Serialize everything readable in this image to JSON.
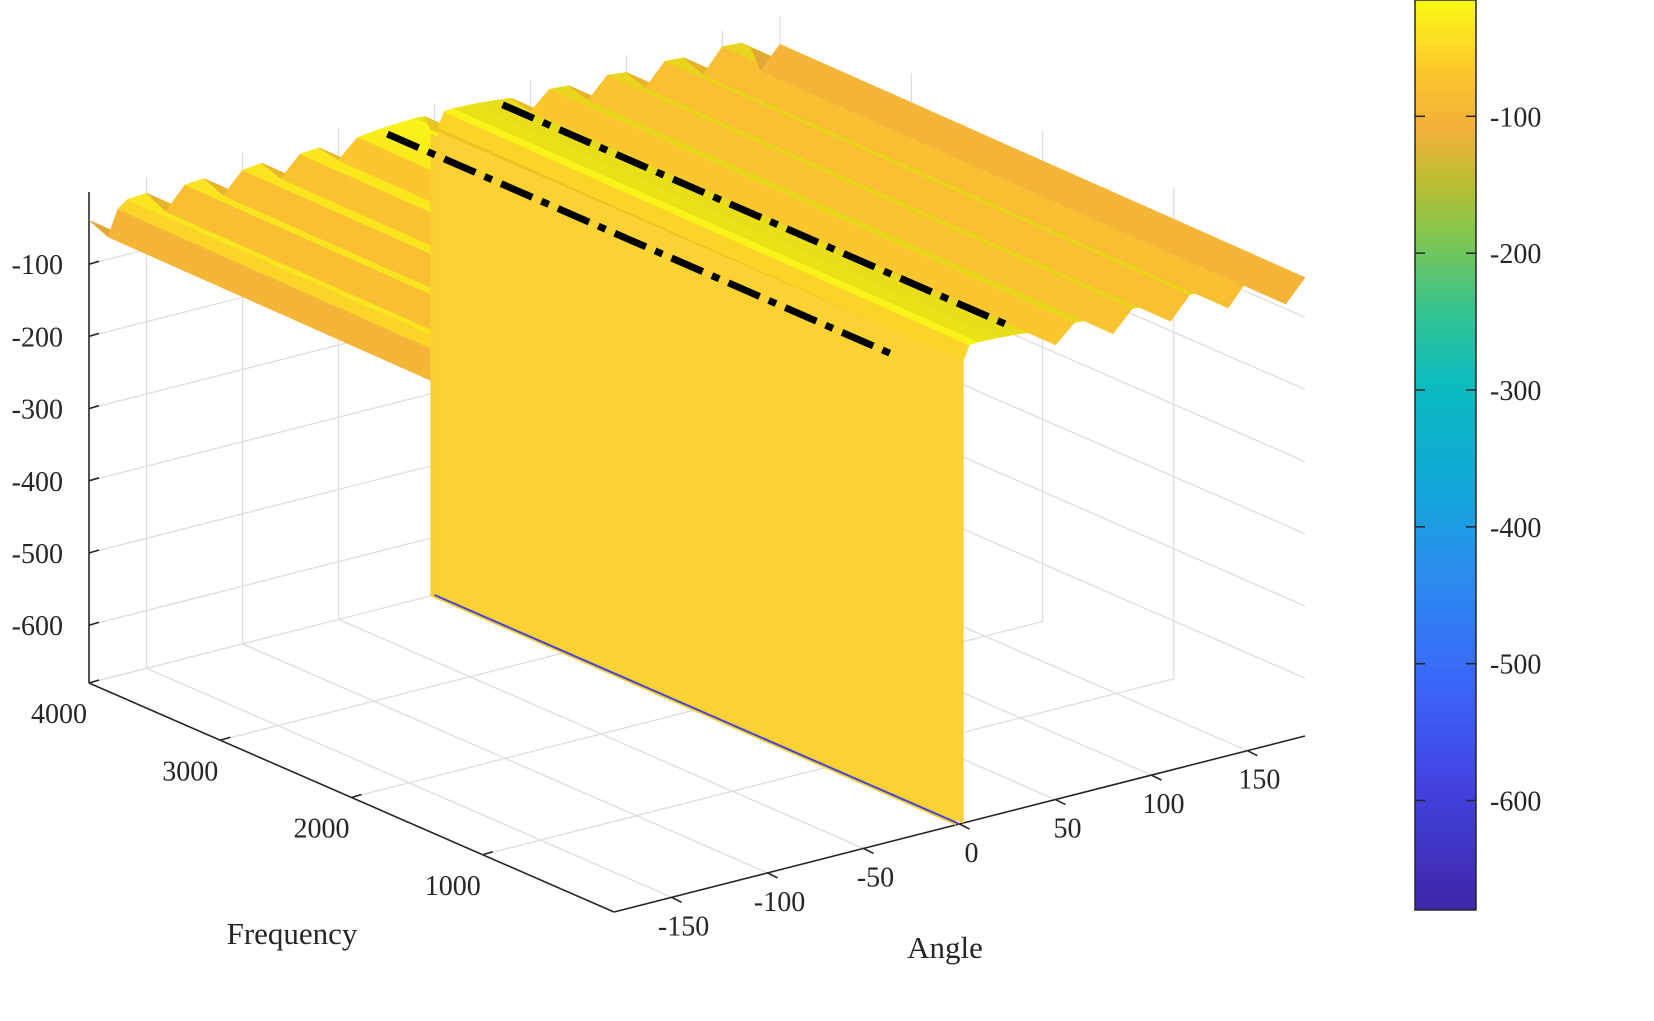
{
  "chart_data": {
    "type": "surface",
    "title": "",
    "xlabel": "Angle",
    "ylabel": "Frequency",
    "zlabel": "",
    "x_ticks": [
      -150,
      -100,
      -50,
      0,
      50,
      100,
      150
    ],
    "y_ticks": [
      1000,
      2000,
      3000,
      4000
    ],
    "z_ticks": [
      -100,
      -200,
      -300,
      -400,
      -500,
      -600
    ],
    "xlim": [
      -180,
      180
    ],
    "ylim": [
      0,
      4000
    ],
    "zlim": [
      -680,
      0
    ],
    "grid": true,
    "colormap": "parula",
    "colorbar": {
      "location": "right",
      "ticks": [
        -100,
        -200,
        -300,
        -400,
        -500,
        -600
      ],
      "range": [
        -680,
        -15
      ]
    },
    "surface": {
      "angles": [
        -180,
        -170,
        -165,
        -160,
        -150,
        -140,
        -130,
        -120,
        -110,
        -100,
        -90,
        -80,
        -70,
        -60,
        -50,
        -40,
        -30,
        -20,
        -10,
        -5,
        -2,
        0,
        2,
        5,
        10,
        20,
        30,
        40,
        50,
        60,
        70,
        80,
        90,
        100,
        110,
        120,
        130,
        140,
        150,
        160,
        165,
        170,
        180
      ],
      "levels_at_low_frequency": [
        -45,
        -75,
        -40,
        -30,
        -28,
        -60,
        -30,
        -28,
        -58,
        -30,
        -27,
        -55,
        -28,
        -26,
        -50,
        -25,
        -22,
        -20,
        -19,
        -20,
        -40,
        -680,
        -40,
        -20,
        -19,
        -20,
        -22,
        -25,
        -50,
        -26,
        -28,
        -55,
        -27,
        -30,
        -58,
        -28,
        -30,
        -60,
        -28,
        -30,
        -40,
        -75,
        -45
      ],
      "level_at_notch": -680,
      "notch_angle": 0
    },
    "reference_lines": [
      {
        "style": "dash-dot",
        "color": "#000000",
        "angle": -30,
        "level": -15
      },
      {
        "style": "dash-dot",
        "color": "#000000",
        "angle": 30,
        "level": -15
      }
    ]
  }
}
